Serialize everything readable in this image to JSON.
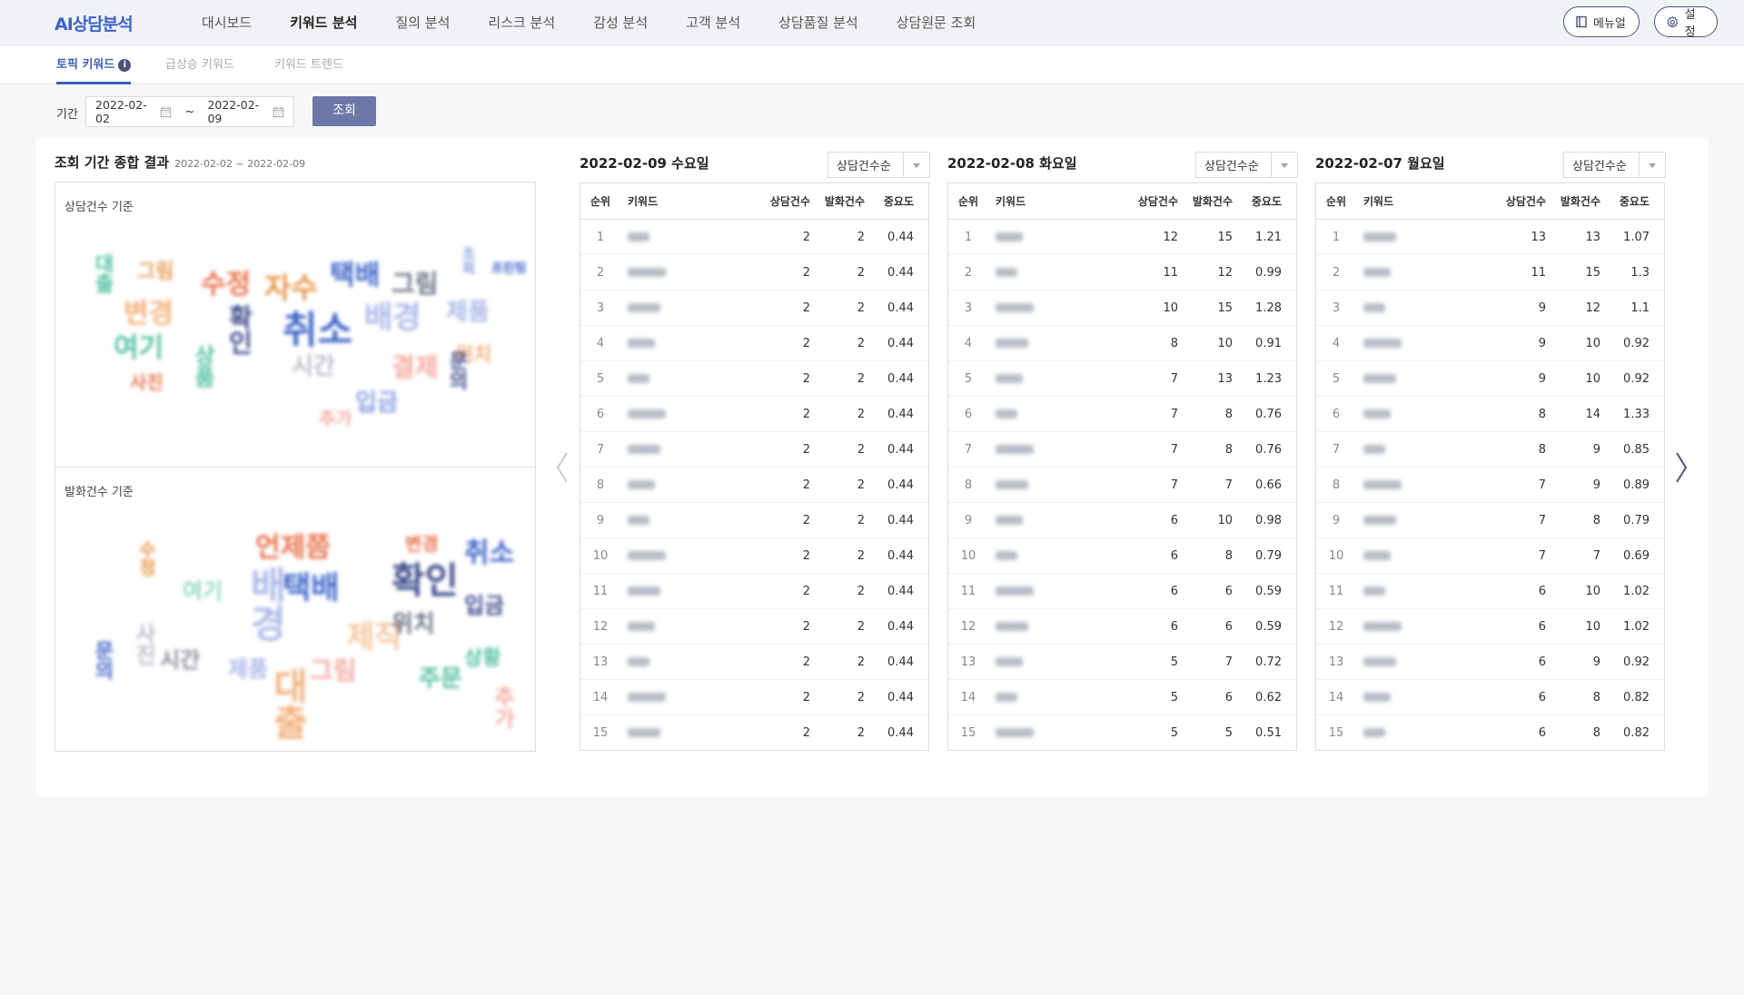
{
  "app": {
    "logo": "AI상담분석"
  },
  "nav": {
    "items": [
      "대시보드",
      "키워드 분석",
      "질의 분석",
      "리스크 분석",
      "감성 분석",
      "고객 분석",
      "상담품질 분석",
      "상담원문 조회"
    ],
    "active": "키워드 분석",
    "manual_label": "메뉴얼",
    "settings_label": "설정"
  },
  "subtabs": {
    "items": [
      "토픽 키워드",
      "급상승 키워드",
      "키워드 트렌드"
    ],
    "active": "토픽 키워드",
    "info_glyph": "i"
  },
  "filter": {
    "label": "기간",
    "start_date": "2022-02-02",
    "separator": "~",
    "end_date": "2022-02-09",
    "search_label": "조회"
  },
  "summary": {
    "title": "조회 기간 종합 결과",
    "range": "2022-02-02 ~ 2022-02-09",
    "panels": [
      {
        "label": "상담건수 기준",
        "words": [
          {
            "text": "대출",
            "color": "#4fbf9f"
          },
          {
            "text": "그림",
            "color": "#e89a5a"
          },
          {
            "text": "수정",
            "color": "#e8704a"
          },
          {
            "text": "자수",
            "color": "#e8954a"
          },
          {
            "text": "택배",
            "color": "#3b63c8"
          },
          {
            "text": "그림",
            "color": "#6b7186"
          },
          {
            "text": "조회",
            "color": "#8aa0e0"
          },
          {
            "text": "프린팅",
            "color": "#3b63c8"
          },
          {
            "text": "변경",
            "color": "#f2b07a"
          },
          {
            "text": "여기",
            "color": "#4fbf9f"
          },
          {
            "text": "확인",
            "color": "#3b4a8a"
          },
          {
            "text": "취소",
            "color": "#3b63c8"
          },
          {
            "text": "배경",
            "color": "#a9b8e8"
          },
          {
            "text": "제품",
            "color": "#a9b8e8"
          },
          {
            "text": "결제",
            "color": "#f4a9a0"
          },
          {
            "text": "위치",
            "color": "#f2b07a"
          },
          {
            "text": "시간",
            "color": "#b9bcc8"
          },
          {
            "text": "사진",
            "color": "#e8704a"
          },
          {
            "text": "입금",
            "color": "#8aa0e0"
          },
          {
            "text": "문의",
            "color": "#3b4a8a"
          },
          {
            "text": "상품",
            "color": "#4fbf9f"
          },
          {
            "text": "추가",
            "color": "#f4a9a0"
          }
        ]
      },
      {
        "label": "발화건수 기준",
        "words": [
          {
            "text": "수정",
            "color": "#e8954a"
          },
          {
            "text": "언제쯤",
            "color": "#e8704a"
          },
          {
            "text": "변경",
            "color": "#e8704a"
          },
          {
            "text": "취소",
            "color": "#3b63c8"
          },
          {
            "text": "확인",
            "color": "#3b4a8a"
          },
          {
            "text": "배경",
            "color": "#a9b8e8"
          },
          {
            "text": "택배",
            "color": "#3b63c8"
          },
          {
            "text": "입금",
            "color": "#3b4a8a"
          },
          {
            "text": "여기",
            "color": "#8fd6c0"
          },
          {
            "text": "제작",
            "color": "#f4c7a0"
          },
          {
            "text": "위치",
            "color": "#6b7186"
          },
          {
            "text": "상황",
            "color": "#4fbf9f"
          },
          {
            "text": "시간",
            "color": "#8a8d99"
          },
          {
            "text": "그림",
            "color": "#f4a9a0"
          },
          {
            "text": "제품",
            "color": "#a9b8e8"
          },
          {
            "text": "주문",
            "color": "#4fbf9f"
          },
          {
            "text": "대출",
            "color": "#f2b07a"
          },
          {
            "text": "추가",
            "color": "#f4a9a0"
          },
          {
            "text": "문의",
            "color": "#3b63c8"
          },
          {
            "text": "사진",
            "color": "#b9bcc8"
          }
        ]
      }
    ]
  },
  "table_headers": [
    "순위",
    "키워드",
    "상담건수",
    "발화건수",
    "중요도"
  ],
  "days": [
    {
      "title": "2022-02-09 수요일",
      "sort_label": "상담건수순",
      "rows": [
        {
          "rank": "1",
          "count": "2",
          "utter": "2",
          "imp": "0.44"
        },
        {
          "rank": "2",
          "count": "2",
          "utter": "2",
          "imp": "0.44"
        },
        {
          "rank": "3",
          "count": "2",
          "utter": "2",
          "imp": "0.44"
        },
        {
          "rank": "4",
          "count": "2",
          "utter": "2",
          "imp": "0.44"
        },
        {
          "rank": "5",
          "count": "2",
          "utter": "2",
          "imp": "0.44"
        },
        {
          "rank": "6",
          "count": "2",
          "utter": "2",
          "imp": "0.44"
        },
        {
          "rank": "7",
          "count": "2",
          "utter": "2",
          "imp": "0.44"
        },
        {
          "rank": "8",
          "count": "2",
          "utter": "2",
          "imp": "0.44"
        },
        {
          "rank": "9",
          "count": "2",
          "utter": "2",
          "imp": "0.44"
        },
        {
          "rank": "10",
          "count": "2",
          "utter": "2",
          "imp": "0.44"
        },
        {
          "rank": "11",
          "count": "2",
          "utter": "2",
          "imp": "0.44"
        },
        {
          "rank": "12",
          "count": "2",
          "utter": "2",
          "imp": "0.44"
        },
        {
          "rank": "13",
          "count": "2",
          "utter": "2",
          "imp": "0.44"
        },
        {
          "rank": "14",
          "count": "2",
          "utter": "2",
          "imp": "0.44"
        },
        {
          "rank": "15",
          "count": "2",
          "utter": "2",
          "imp": "0.44"
        }
      ]
    },
    {
      "title": "2022-02-08 화요일",
      "sort_label": "상담건수순",
      "rows": [
        {
          "rank": "1",
          "count": "12",
          "utter": "15",
          "imp": "1.21"
        },
        {
          "rank": "2",
          "count": "11",
          "utter": "12",
          "imp": "0.99"
        },
        {
          "rank": "3",
          "count": "10",
          "utter": "15",
          "imp": "1.28"
        },
        {
          "rank": "4",
          "count": "8",
          "utter": "10",
          "imp": "0.91"
        },
        {
          "rank": "5",
          "count": "7",
          "utter": "13",
          "imp": "1.23"
        },
        {
          "rank": "6",
          "count": "7",
          "utter": "8",
          "imp": "0.76"
        },
        {
          "rank": "7",
          "count": "7",
          "utter": "8",
          "imp": "0.76"
        },
        {
          "rank": "8",
          "count": "7",
          "utter": "7",
          "imp": "0.66"
        },
        {
          "rank": "9",
          "count": "6",
          "utter": "10",
          "imp": "0.98"
        },
        {
          "rank": "10",
          "count": "6",
          "utter": "8",
          "imp": "0.79"
        },
        {
          "rank": "11",
          "count": "6",
          "utter": "6",
          "imp": "0.59"
        },
        {
          "rank": "12",
          "count": "6",
          "utter": "6",
          "imp": "0.59"
        },
        {
          "rank": "13",
          "count": "5",
          "utter": "7",
          "imp": "0.72"
        },
        {
          "rank": "14",
          "count": "5",
          "utter": "6",
          "imp": "0.62"
        },
        {
          "rank": "15",
          "count": "5",
          "utter": "5",
          "imp": "0.51"
        }
      ]
    },
    {
      "title": "2022-02-07 월요일",
      "sort_label": "상담건수순",
      "rows": [
        {
          "rank": "1",
          "count": "13",
          "utter": "13",
          "imp": "1.07"
        },
        {
          "rank": "2",
          "count": "11",
          "utter": "15",
          "imp": "1.3"
        },
        {
          "rank": "3",
          "count": "9",
          "utter": "12",
          "imp": "1.1"
        },
        {
          "rank": "4",
          "count": "9",
          "utter": "10",
          "imp": "0.92"
        },
        {
          "rank": "5",
          "count": "9",
          "utter": "10",
          "imp": "0.92"
        },
        {
          "rank": "6",
          "count": "8",
          "utter": "14",
          "imp": "1.33"
        },
        {
          "rank": "7",
          "count": "8",
          "utter": "9",
          "imp": "0.85"
        },
        {
          "rank": "8",
          "count": "7",
          "utter": "9",
          "imp": "0.89"
        },
        {
          "rank": "9",
          "count": "7",
          "utter": "8",
          "imp": "0.79"
        },
        {
          "rank": "10",
          "count": "7",
          "utter": "7",
          "imp": "0.69"
        },
        {
          "rank": "11",
          "count": "6",
          "utter": "10",
          "imp": "1.02"
        },
        {
          "rank": "12",
          "count": "6",
          "utter": "10",
          "imp": "1.02"
        },
        {
          "rank": "13",
          "count": "6",
          "utter": "9",
          "imp": "0.92"
        },
        {
          "rank": "14",
          "count": "6",
          "utter": "8",
          "imp": "0.82"
        },
        {
          "rank": "15",
          "count": "6",
          "utter": "8",
          "imp": "0.82"
        }
      ]
    }
  ]
}
